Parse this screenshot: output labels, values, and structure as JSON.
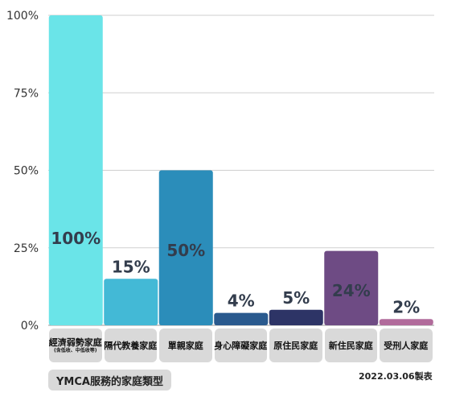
{
  "chart_data": {
    "type": "bar",
    "categories": [
      "經濟弱勢家庭",
      "隔代教養家庭",
      "單親家庭",
      "身心障礙家庭",
      "原住民家庭",
      "新住民家庭",
      "受刑人家庭"
    ],
    "category_notes": [
      "(含低收、中低收等)",
      "",
      "",
      "",
      "",
      "",
      ""
    ],
    "values": [
      100,
      15,
      50,
      4,
      5,
      24,
      2
    ],
    "data_labels": [
      "100%",
      "15%",
      "50%",
      "4%",
      "5%",
      "24%",
      "2%"
    ],
    "colors": [
      "#6ae4e8",
      "#43b9d6",
      "#2b8dba",
      "#2a5a8e",
      "#2d3466",
      "#6e4b84",
      "#b16b9b"
    ],
    "yticks": [
      0,
      25,
      50,
      75,
      100
    ],
    "ytick_labels": [
      "0%",
      "25%",
      "50%",
      "75%",
      "100%"
    ],
    "ylim": [
      0,
      100
    ],
    "grid": true
  },
  "footer": {
    "caption": "YMCA服務的家庭類型",
    "date": "2022.03.06製表"
  }
}
